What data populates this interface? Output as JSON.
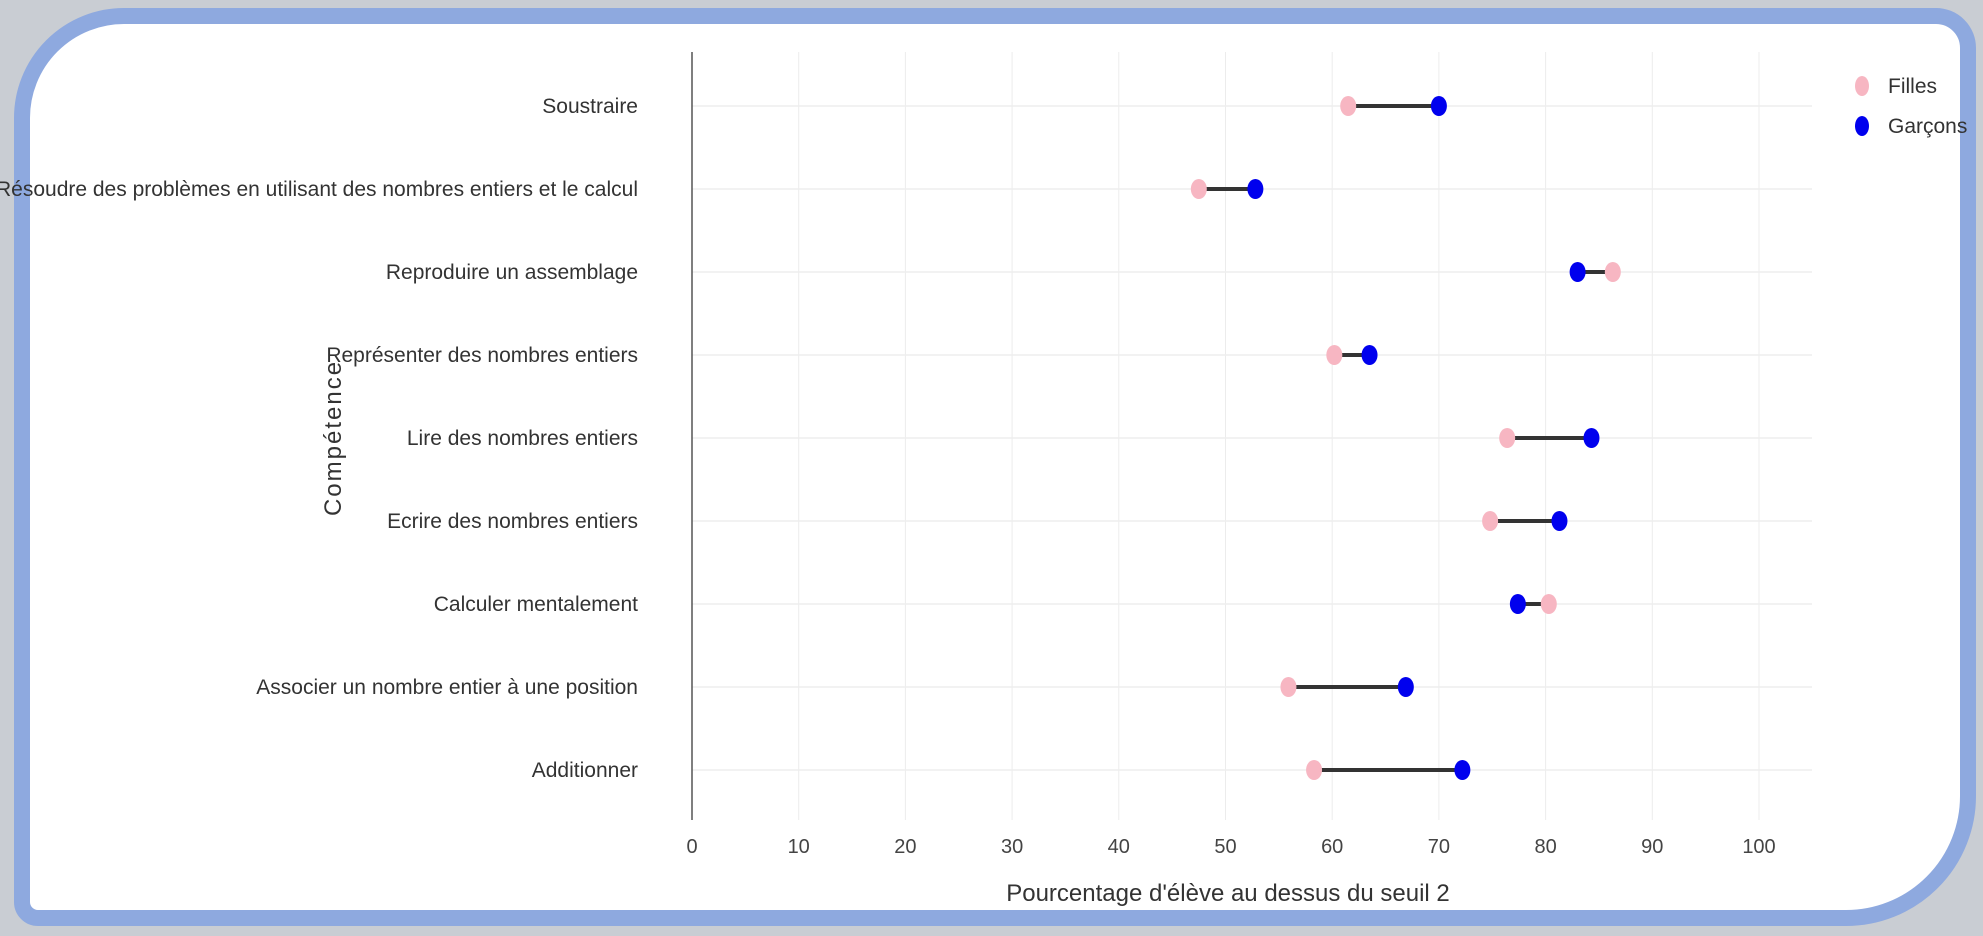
{
  "chart_data": {
    "type": "dumbbell",
    "xlabel": "Pourcentage d'élève au dessus du seuil 2",
    "ylabel": "Compétence",
    "xlim": [
      0,
      105
    ],
    "xticks": [
      0,
      10,
      20,
      30,
      40,
      50,
      60,
      70,
      80,
      90,
      100
    ],
    "grid": true,
    "legend_position": "top-right",
    "categories": [
      "Soustraire",
      "Résoudre des problèmes en utilisant des nombres entiers et le calcul",
      "Reproduire un assemblage",
      "Représenter des nombres entiers",
      "Lire des nombres entiers",
      "Ecrire des nombres entiers",
      "Calculer mentalement",
      "Associer un nombre entier à une position",
      "Additionner"
    ],
    "series": [
      {
        "name": "Filles",
        "color": "#f7b6c2",
        "values": [
          61.5,
          47.5,
          86.3,
          60.2,
          76.4,
          74.8,
          80.3,
          55.9,
          58.3
        ]
      },
      {
        "name": "Garçons",
        "color": "#0000ee",
        "values": [
          70.0,
          52.8,
          83.0,
          63.5,
          84.3,
          81.3,
          77.4,
          66.9,
          72.2
        ]
      }
    ],
    "connector_color": "#333333"
  }
}
